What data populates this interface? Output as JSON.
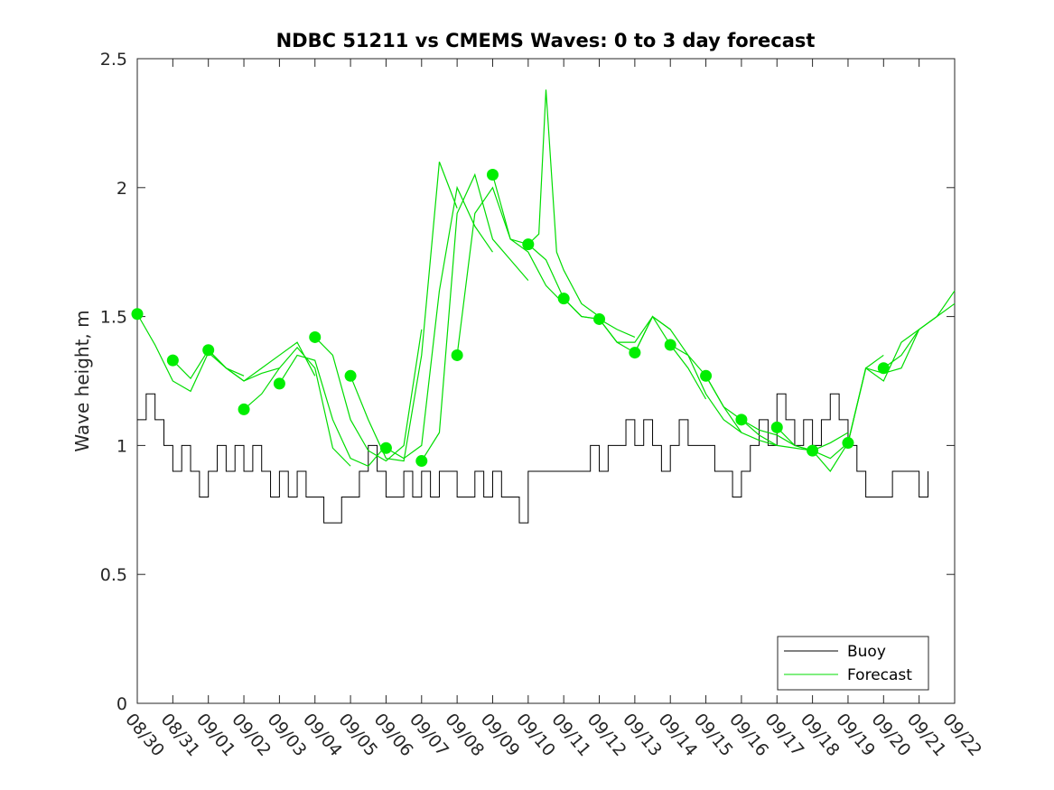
{
  "chart_data": {
    "type": "line",
    "title": "NDBC 51211 vs CMEMS Waves: 0 to 3 day forecast",
    "xlabel": "",
    "ylabel": "Wave height, m",
    "ylim": [
      0,
      2.5
    ],
    "xlim": [
      0,
      23
    ],
    "yticks": [
      0,
      0.5,
      1,
      1.5,
      2,
      2.5
    ],
    "ytick_labels": [
      "0",
      "0.5",
      "1",
      "1.5",
      "2",
      "2.5"
    ],
    "x_tick_labels": [
      "08/30",
      "08/31",
      "09/01",
      "09/02",
      "09/03",
      "09/04",
      "09/05",
      "09/06",
      "09/07",
      "09/08",
      "09/09",
      "09/10",
      "09/11",
      "09/12",
      "09/13",
      "09/14",
      "09/15",
      "09/16",
      "09/17",
      "09/18",
      "09/19",
      "09/20",
      "09/21",
      "09/22"
    ],
    "x_units": "days since 08/30",
    "grid": false,
    "legend_position": "bottom-right",
    "colors": {
      "buoy": "#000000",
      "forecast": "#00dd00",
      "markers": "#00ee00"
    },
    "series": [
      {
        "name": "Buoy",
        "x": [
          0,
          0.25,
          0.5,
          0.75,
          1,
          1.25,
          1.5,
          1.75,
          2,
          2.25,
          2.5,
          2.75,
          3,
          3.25,
          3.5,
          3.75,
          4,
          4.25,
          4.5,
          4.75,
          5,
          5.25,
          5.5,
          5.75,
          6,
          6.25,
          6.5,
          6.75,
          7,
          7.25,
          7.5,
          7.75,
          8,
          8.25,
          8.5,
          8.75,
          9,
          9.25,
          9.5,
          9.75,
          10,
          10.25,
          10.5,
          10.75,
          11,
          11.25,
          11.5,
          11.75,
          12,
          12.25,
          12.5,
          12.75,
          13,
          13.25,
          13.5,
          13.75,
          14,
          14.25,
          14.5,
          14.75,
          15,
          15.25,
          15.5,
          15.75,
          16,
          16.25,
          16.5,
          16.75,
          17,
          17.25,
          17.5,
          17.75,
          18,
          18.25,
          18.5,
          18.75,
          19,
          19.25,
          19.5,
          19.75,
          20,
          20.25,
          20.5,
          20.75,
          21,
          21.25,
          21.5,
          21.75,
          22,
          22.25
        ],
        "values": [
          1.1,
          1.2,
          1.1,
          1.0,
          0.9,
          1.0,
          0.9,
          0.8,
          0.9,
          1.0,
          0.9,
          1.0,
          0.9,
          1.0,
          0.9,
          0.8,
          0.9,
          0.8,
          0.9,
          0.8,
          0.8,
          0.7,
          0.7,
          0.8,
          0.8,
          0.9,
          1.0,
          0.9,
          0.8,
          0.8,
          0.9,
          0.8,
          0.9,
          0.8,
          0.9,
          0.9,
          0.8,
          0.8,
          0.9,
          0.8,
          0.9,
          0.8,
          0.8,
          0.7,
          0.9,
          0.9,
          0.9,
          0.9,
          0.9,
          0.9,
          0.9,
          1.0,
          0.9,
          1.0,
          1.0,
          1.1,
          1.0,
          1.1,
          1.0,
          0.9,
          1.0,
          1.1,
          1.0,
          1.0,
          1.0,
          0.9,
          0.9,
          0.8,
          0.9,
          1.0,
          1.1,
          1.0,
          1.2,
          1.1,
          1.0,
          1.1,
          1.0,
          1.1,
          1.2,
          1.1,
          1.0,
          0.9,
          0.8,
          0.8,
          0.8,
          0.9,
          0.9,
          0.9,
          0.8,
          0.9
        ]
      },
      {
        "name": "Forecast",
        "runs": [
          {
            "x": [
              0,
              0.5,
              1,
              1.5,
              2,
              2.5,
              3
            ],
            "values": [
              1.51,
              1.39,
              1.25,
              1.21,
              1.36,
              1.3,
              1.27
            ]
          },
          {
            "x": [
              1,
              1.5,
              2,
              2.5,
              3,
              3.5,
              4
            ],
            "values": [
              1.33,
              1.26,
              1.37,
              1.3,
              1.25,
              1.28,
              1.3
            ]
          },
          {
            "x": [
              2,
              2.5,
              3,
              3.5,
              4,
              4.5,
              5
            ],
            "values": [
              1.37,
              1.3,
              1.25,
              1.3,
              1.35,
              1.4,
              1.27
            ]
          },
          {
            "x": [
              3,
              3.5,
              4,
              4.5,
              5,
              5.5,
              6
            ],
            "values": [
              1.14,
              1.2,
              1.3,
              1.38,
              1.3,
              0.99,
              0.92
            ]
          },
          {
            "x": [
              4,
              4.5,
              5,
              5.5,
              6,
              6.5,
              7
            ],
            "values": [
              1.24,
              1.35,
              1.33,
              1.1,
              0.95,
              0.92,
              1.0
            ]
          },
          {
            "x": [
              5,
              5.5,
              6,
              6.5,
              7,
              7.5,
              8
            ],
            "values": [
              1.42,
              1.35,
              1.1,
              0.98,
              0.94,
              1.0,
              1.45
            ]
          },
          {
            "x": [
              6,
              6.5,
              7,
              7.5,
              8,
              8.5,
              9
            ],
            "values": [
              1.27,
              1.1,
              0.95,
              0.94,
              1.35,
              2.1,
              1.92
            ]
          },
          {
            "x": [
              7,
              7.5,
              8,
              8.5,
              9,
              9.5,
              10
            ],
            "values": [
              0.99,
              0.95,
              1.0,
              1.6,
              2.0,
              1.85,
              1.75
            ]
          },
          {
            "x": [
              8,
              8.5,
              9,
              9.5,
              10,
              10.5,
              11
            ],
            "values": [
              0.94,
              1.05,
              1.9,
              2.05,
              1.8,
              1.72,
              1.64
            ]
          },
          {
            "x": [
              9,
              9.5,
              10,
              10.5,
              11,
              11.5,
              12
            ],
            "values": [
              1.35,
              1.9,
              2.0,
              1.8,
              1.75,
              1.62,
              1.55
            ]
          },
          {
            "x": [
              10,
              10.5,
              11,
              11.3,
              11.5,
              11.8,
              12,
              12.5,
              13
            ],
            "values": [
              2.05,
              1.8,
              1.78,
              1.82,
              2.38,
              1.75,
              1.68,
              1.55,
              1.5
            ]
          },
          {
            "x": [
              11,
              11.5,
              12,
              12.5,
              13,
              13.5,
              14
            ],
            "values": [
              1.78,
              1.72,
              1.57,
              1.5,
              1.49,
              1.45,
              1.42
            ]
          },
          {
            "x": [
              12,
              12.5,
              13,
              13.5,
              14,
              14.5,
              15
            ],
            "values": [
              1.57,
              1.5,
              1.49,
              1.4,
              1.4,
              1.5,
              1.45
            ]
          },
          {
            "x": [
              13,
              13.5,
              14,
              14.5,
              15,
              15.5,
              16
            ],
            "values": [
              1.49,
              1.4,
              1.36,
              1.5,
              1.39,
              1.3,
              1.18
            ]
          },
          {
            "x": [
              14,
              14.5,
              15,
              15.5,
              16,
              16.5,
              17
            ],
            "values": [
              1.36,
              1.5,
              1.45,
              1.35,
              1.2,
              1.1,
              1.05
            ]
          },
          {
            "x": [
              15,
              15.5,
              16,
              16.5,
              17,
              17.5,
              18
            ],
            "values": [
              1.39,
              1.35,
              1.27,
              1.15,
              1.05,
              1.02,
              1.0
            ]
          },
          {
            "x": [
              16,
              16.5,
              17,
              17.5,
              18,
              18.5,
              19
            ],
            "values": [
              1.27,
              1.15,
              1.1,
              1.04,
              1.0,
              0.99,
              0.98
            ]
          },
          {
            "x": [
              17,
              17.5,
              18,
              18.5,
              19,
              19.5,
              20
            ],
            "values": [
              1.1,
              1.06,
              1.04,
              1.0,
              0.98,
              1.01,
              1.05
            ]
          },
          {
            "x": [
              18,
              18.5,
              19,
              19.5,
              20,
              20.5,
              21
            ],
            "values": [
              1.07,
              1.0,
              0.98,
              0.9,
              1.01,
              1.3,
              1.35
            ]
          },
          {
            "x": [
              19,
              19.5,
              20,
              20.5,
              21,
              21.5,
              22
            ],
            "values": [
              0.98,
              0.95,
              1.01,
              1.3,
              1.25,
              1.4,
              1.45
            ]
          },
          {
            "x": [
              20,
              20.5,
              21,
              21.5,
              22,
              22.5,
              23
            ],
            "values": [
              1.01,
              1.3,
              1.28,
              1.3,
              1.45,
              1.5,
              1.55
            ]
          },
          {
            "x": [
              21,
              21.5,
              22,
              22.5,
              23
            ],
            "values": [
              1.3,
              1.35,
              1.45,
              1.5,
              1.6
            ]
          }
        ],
        "markers": {
          "x": [
            0,
            1,
            2,
            3,
            4,
            5,
            6,
            7,
            8,
            9,
            10,
            11,
            12,
            13,
            14,
            15,
            16,
            17,
            18,
            19,
            20,
            21
          ],
          "values": [
            1.51,
            1.33,
            1.37,
            1.14,
            1.24,
            1.42,
            1.27,
            0.99,
            0.94,
            1.35,
            2.05,
            1.78,
            1.57,
            1.49,
            1.36,
            1.39,
            1.27,
            1.1,
            1.07,
            0.98,
            1.01,
            1.3
          ]
        }
      }
    ],
    "legend": [
      "Buoy",
      "Forecast"
    ]
  }
}
